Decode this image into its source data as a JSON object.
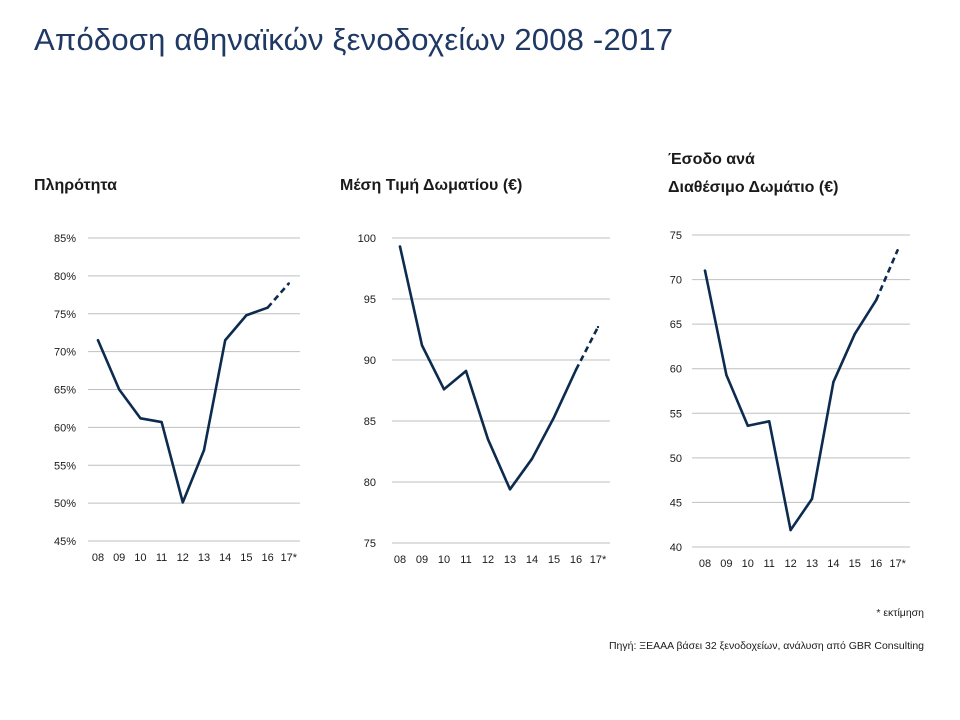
{
  "page": {
    "title": "Απόδοση αθηναϊκών ξενοδοχείων 2008 -2017",
    "note_estimate": "* εκτίμηση",
    "note_source": "Πηγή: ΞΕΑΑΑ βάσει 32 ξενοδοχείων, ανάλυση από GBR Consulting"
  },
  "colors": {
    "line": "#0d2b4f",
    "grid": "#bfbfbf",
    "title": "#1f3864"
  },
  "chart_data": [
    {
      "type": "line",
      "title": "Πληρότητα",
      "title_lines": [
        "Πληρότητα"
      ],
      "categories": [
        "08",
        "09",
        "10",
        "11",
        "12",
        "13",
        "14",
        "15",
        "16",
        "17*"
      ],
      "values": [
        71.5,
        65.0,
        61.2,
        60.7,
        50.1,
        57.0,
        71.5,
        74.8,
        75.8,
        79.0
      ],
      "estimated_from_index": 8,
      "yticks": [
        45,
        50,
        55,
        60,
        65,
        70,
        75,
        80,
        85
      ],
      "ytick_labels": [
        "45%",
        "50%",
        "55%",
        "60%",
        "65%",
        "70%",
        "75%",
        "80%",
        "85%"
      ],
      "ylim": [
        45,
        85
      ],
      "grid": true,
      "xlabel": "",
      "ylabel": ""
    },
    {
      "type": "line",
      "title": "Μέση Τιμή Δωματίου (€)",
      "title_lines": [
        "Μέση Τιμή Δωματίου (€)"
      ],
      "categories": [
        "08",
        "09",
        "10",
        "11",
        "12",
        "13",
        "14",
        "15",
        "16",
        "17*"
      ],
      "values": [
        99.3,
        91.2,
        87.6,
        89.1,
        83.5,
        79.4,
        81.9,
        85.3,
        89.2,
        92.7
      ],
      "estimated_from_index": 8,
      "yticks": [
        75,
        80,
        85,
        90,
        95,
        100
      ],
      "ytick_labels": [
        "75",
        "80",
        "85",
        "90",
        "95",
        "100"
      ],
      "ylim": [
        75,
        100
      ],
      "grid": true,
      "xlabel": "",
      "ylabel": ""
    },
    {
      "type": "line",
      "title": "Έσοδο ανά Διαθέσιμο Δωμάτιο (€)",
      "title_lines": [
        "Έσοδο ανά",
        "Διαθέσιμο Δωμάτιο (€)"
      ],
      "categories": [
        "08",
        "09",
        "10",
        "11",
        "12",
        "13",
        "14",
        "15",
        "16",
        "17*"
      ],
      "values": [
        71.0,
        59.3,
        53.6,
        54.1,
        41.9,
        45.4,
        58.5,
        63.9,
        67.7,
        73.3
      ],
      "estimated_from_index": 8,
      "yticks": [
        40,
        45,
        50,
        55,
        60,
        65,
        70,
        75
      ],
      "ytick_labels": [
        "40",
        "45",
        "50",
        "55",
        "60",
        "65",
        "70",
        "75"
      ],
      "ylim": [
        40,
        75
      ],
      "grid": true,
      "xlabel": "",
      "ylabel": ""
    }
  ]
}
